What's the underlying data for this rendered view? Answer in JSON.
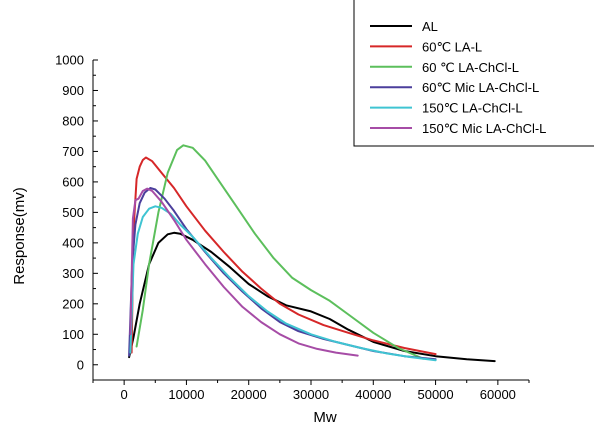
{
  "chart_data": {
    "type": "line",
    "title": "",
    "xlabel": "Mw",
    "ylabel": "Response(mv)",
    "xlim": [
      -5000,
      65000
    ],
    "ylim": [
      -50,
      1000
    ],
    "x_ticks": [
      0,
      10000,
      20000,
      30000,
      40000,
      50000,
      60000
    ],
    "y_ticks": [
      0,
      100,
      200,
      300,
      400,
      500,
      600,
      700,
      800,
      900,
      1000
    ],
    "grid": false,
    "legend_position": "top-right",
    "series": [
      {
        "name": "AL",
        "color": "#000000",
        "points": [
          [
            800,
            25
          ],
          [
            1500,
            90
          ],
          [
            2500,
            200
          ],
          [
            4000,
            330
          ],
          [
            5500,
            400
          ],
          [
            7000,
            428
          ],
          [
            8000,
            433
          ],
          [
            9000,
            430
          ],
          [
            11000,
            410
          ],
          [
            14000,
            370
          ],
          [
            17000,
            320
          ],
          [
            20000,
            265
          ],
          [
            23000,
            225
          ],
          [
            26000,
            195
          ],
          [
            30000,
            175
          ],
          [
            33000,
            150
          ],
          [
            36000,
            115
          ],
          [
            40000,
            75
          ],
          [
            45000,
            45
          ],
          [
            50000,
            28
          ],
          [
            55000,
            18
          ],
          [
            59500,
            12
          ]
        ]
      },
      {
        "name": "60℃ LA-L",
        "color": "#d62728",
        "points": [
          [
            1200,
            40
          ],
          [
            1500,
            440
          ],
          [
            2000,
            610
          ],
          [
            2500,
            650
          ],
          [
            3000,
            672
          ],
          [
            3500,
            680
          ],
          [
            4500,
            668
          ],
          [
            6000,
            630
          ],
          [
            8000,
            580
          ],
          [
            10000,
            520
          ],
          [
            13000,
            440
          ],
          [
            16000,
            370
          ],
          [
            19000,
            305
          ],
          [
            22000,
            250
          ],
          [
            25000,
            200
          ],
          [
            28000,
            165
          ],
          [
            32000,
            130
          ],
          [
            36000,
            105
          ],
          [
            40000,
            80
          ],
          [
            45000,
            55
          ],
          [
            50000,
            35
          ]
        ]
      },
      {
        "name": "60 ℃ LA-ChCl-L",
        "color": "#5cbf5c",
        "points": [
          [
            2000,
            60
          ],
          [
            3000,
            180
          ],
          [
            4000,
            330
          ],
          [
            5500,
            500
          ],
          [
            7000,
            630
          ],
          [
            8500,
            705
          ],
          [
            9500,
            720
          ],
          [
            11000,
            712
          ],
          [
            13000,
            670
          ],
          [
            15000,
            610
          ],
          [
            18000,
            520
          ],
          [
            21000,
            430
          ],
          [
            24000,
            350
          ],
          [
            27000,
            285
          ],
          [
            30000,
            245
          ],
          [
            33000,
            210
          ],
          [
            36000,
            165
          ],
          [
            40000,
            105
          ],
          [
            44000,
            55
          ],
          [
            48000,
            20
          ]
        ]
      },
      {
        "name": "60℃ Mic LA-ChCl-L",
        "color": "#4b3f9c",
        "points": [
          [
            800,
            30
          ],
          [
            1300,
            330
          ],
          [
            1800,
            460
          ],
          [
            2500,
            530
          ],
          [
            3300,
            565
          ],
          [
            4200,
            580
          ],
          [
            5000,
            575
          ],
          [
            6500,
            545
          ],
          [
            8000,
            505
          ],
          [
            10000,
            445
          ],
          [
            13000,
            370
          ],
          [
            16000,
            300
          ],
          [
            19000,
            240
          ],
          [
            22000,
            185
          ],
          [
            25000,
            140
          ],
          [
            28000,
            110
          ],
          [
            32000,
            85
          ],
          [
            36000,
            65
          ],
          [
            40000,
            45
          ],
          [
            45000,
            28
          ],
          [
            50000,
            18
          ]
        ]
      },
      {
        "name": "150℃ LA-ChCl-L",
        "color": "#3fc4d2",
        "points": [
          [
            1000,
            40
          ],
          [
            1500,
            330
          ],
          [
            2200,
            430
          ],
          [
            3000,
            485
          ],
          [
            4000,
            512
          ],
          [
            5000,
            520
          ],
          [
            6000,
            515
          ],
          [
            7500,
            495
          ],
          [
            9000,
            460
          ],
          [
            11000,
            420
          ],
          [
            14000,
            350
          ],
          [
            17000,
            285
          ],
          [
            20000,
            225
          ],
          [
            23000,
            175
          ],
          [
            26000,
            135
          ],
          [
            30000,
            100
          ],
          [
            34000,
            75
          ],
          [
            38000,
            55
          ],
          [
            42000,
            38
          ],
          [
            46000,
            25
          ],
          [
            50000,
            15
          ]
        ]
      },
      {
        "name": "150℃ Mic LA-ChCl-L",
        "color": "#a64ca6",
        "points": [
          [
            1000,
            100
          ],
          [
            1400,
            480
          ],
          [
            1800,
            540
          ],
          [
            2300,
            545
          ],
          [
            3000,
            570
          ],
          [
            3700,
            578
          ],
          [
            4500,
            570
          ],
          [
            6000,
            535
          ],
          [
            8000,
            475
          ],
          [
            10000,
            410
          ],
          [
            13000,
            330
          ],
          [
            16000,
            255
          ],
          [
            19000,
            190
          ],
          [
            22000,
            140
          ],
          [
            25000,
            100
          ],
          [
            28000,
            70
          ],
          [
            31000,
            52
          ],
          [
            34000,
            40
          ],
          [
            37500,
            30
          ]
        ]
      }
    ]
  }
}
